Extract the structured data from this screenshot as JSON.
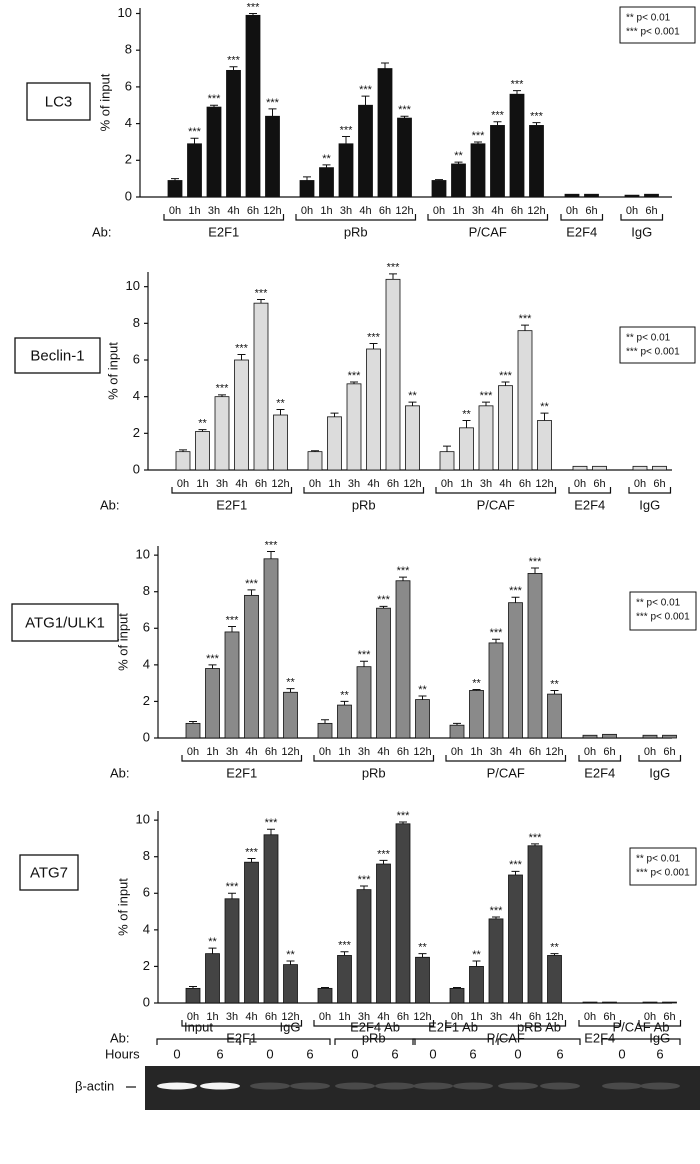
{
  "chart_data": [
    {
      "type": "bar",
      "label": "LC3",
      "ylabel": "% of input",
      "ylim": [
        0,
        10.3
      ],
      "yticks": [
        0,
        2,
        4,
        6,
        8,
        10
      ],
      "color": "#111111",
      "ab_label": "Ab:",
      "legend": [
        "** p< 0.01",
        "*** p< 0.001"
      ],
      "groups": [
        {
          "name": "E2F1",
          "categories": [
            "0h",
            "1h",
            "3h",
            "4h",
            "6h",
            "12h"
          ],
          "values": [
            0.9,
            2.9,
            4.9,
            6.9,
            9.9,
            4.4
          ],
          "errors": [
            0.1,
            0.3,
            0.1,
            0.2,
            0.1,
            0.4
          ],
          "annotations": [
            null,
            "***",
            "***",
            "***",
            "***",
            "***"
          ]
        },
        {
          "name": "pRb",
          "categories": [
            "0h",
            "1h",
            "3h",
            "4h",
            "6h",
            "12h"
          ],
          "values": [
            0.9,
            1.6,
            2.9,
            5.0,
            7.0,
            4.3
          ],
          "errors": [
            0.2,
            0.15,
            0.4,
            0.5,
            0.3,
            0.1
          ],
          "annotations": [
            null,
            "**",
            "***",
            "***",
            null,
            "***"
          ]
        },
        {
          "name": "P/CAF",
          "categories": [
            "0h",
            "1h",
            "3h",
            "4h",
            "6h",
            "12h"
          ],
          "values": [
            0.9,
            1.8,
            2.9,
            3.9,
            5.6,
            3.9
          ],
          "errors": [
            0.05,
            0.1,
            0.1,
            0.2,
            0.2,
            0.15
          ],
          "annotations": [
            null,
            "**",
            "***",
            "***",
            "***",
            "***"
          ]
        },
        {
          "name": "E2F4",
          "categories": [
            "0h",
            "6h"
          ],
          "values": [
            0.15,
            0.15
          ],
          "errors": [
            0,
            0
          ],
          "annotations": [
            null,
            null
          ]
        },
        {
          "name": "IgG",
          "categories": [
            "0h",
            "6h"
          ],
          "values": [
            0.1,
            0.15
          ],
          "errors": [
            0,
            0
          ],
          "annotations": [
            null,
            null
          ]
        }
      ]
    },
    {
      "type": "bar",
      "label": "Beclin-1",
      "ylabel": "% of input",
      "ylim": [
        0,
        10.8
      ],
      "yticks": [
        0,
        2,
        4,
        6,
        8,
        10
      ],
      "color": "#dcdcdc",
      "ab_label": "Ab:",
      "legend": [
        "** p< 0.01",
        "*** p< 0.001"
      ],
      "groups": [
        {
          "name": "E2F1",
          "categories": [
            "0h",
            "1h",
            "3h",
            "4h",
            "6h",
            "12h"
          ],
          "values": [
            1.0,
            2.1,
            4.0,
            6.0,
            9.1,
            3.0
          ],
          "errors": [
            0.1,
            0.1,
            0.1,
            0.3,
            0.2,
            0.3
          ],
          "annotations": [
            null,
            "**",
            "***",
            "***",
            "***",
            "**"
          ]
        },
        {
          "name": "pRb",
          "categories": [
            "0h",
            "1h",
            "3h",
            "4h",
            "6h",
            "12h"
          ],
          "values": [
            1.0,
            2.9,
            4.7,
            6.6,
            10.4,
            3.5
          ],
          "errors": [
            0.05,
            0.2,
            0.1,
            0.3,
            0.3,
            0.2
          ],
          "annotations": [
            null,
            null,
            "***",
            "***",
            "***",
            "**"
          ]
        },
        {
          "name": "P/CAF",
          "categories": [
            "0h",
            "1h",
            "3h",
            "4h",
            "6h",
            "12h"
          ],
          "values": [
            1.0,
            2.3,
            3.5,
            4.6,
            7.6,
            2.7
          ],
          "errors": [
            0.3,
            0.4,
            0.2,
            0.2,
            0.3,
            0.4
          ],
          "annotations": [
            null,
            "**",
            "***",
            "***",
            "***",
            "**"
          ]
        },
        {
          "name": "E2F4",
          "categories": [
            "0h",
            "6h"
          ],
          "values": [
            0.2,
            0.2
          ],
          "errors": [
            0,
            0
          ],
          "annotations": [
            null,
            null
          ]
        },
        {
          "name": "IgG",
          "categories": [
            "0h",
            "6h"
          ],
          "values": [
            0.2,
            0.2
          ],
          "errors": [
            0,
            0
          ],
          "annotations": [
            null,
            null
          ]
        }
      ]
    },
    {
      "type": "bar",
      "label": "ATG1/ULK1",
      "ylabel": "% of input",
      "ylim": [
        0,
        10.5
      ],
      "yticks": [
        0,
        2,
        4,
        6,
        8,
        10
      ],
      "color": "#8a8a8a",
      "ab_label": "Ab:",
      "legend": [
        "** p< 0.01",
        "*** p< 0.001"
      ],
      "groups": [
        {
          "name": "E2F1",
          "categories": [
            "0h",
            "1h",
            "3h",
            "4h",
            "6h",
            "12h"
          ],
          "values": [
            0.8,
            3.8,
            5.8,
            7.8,
            9.8,
            2.5
          ],
          "errors": [
            0.1,
            0.2,
            0.3,
            0.3,
            0.4,
            0.2
          ],
          "annotations": [
            null,
            "***",
            "***",
            "***",
            "***",
            "**"
          ]
        },
        {
          "name": "pRb",
          "categories": [
            "0h",
            "1h",
            "3h",
            "4h",
            "6h",
            "12h"
          ],
          "values": [
            0.8,
            1.8,
            3.9,
            7.1,
            8.6,
            2.1
          ],
          "errors": [
            0.2,
            0.2,
            0.3,
            0.1,
            0.2,
            0.2
          ],
          "annotations": [
            null,
            "**",
            "***",
            "***",
            "***",
            "**"
          ]
        },
        {
          "name": "P/CAF",
          "categories": [
            "0h",
            "1h",
            "3h",
            "4h",
            "6h",
            "12h"
          ],
          "values": [
            0.7,
            2.6,
            5.2,
            7.4,
            9.0,
            2.4
          ],
          "errors": [
            0.1,
            0.05,
            0.2,
            0.3,
            0.3,
            0.2
          ],
          "annotations": [
            null,
            "**",
            "***",
            "***",
            "***",
            "**"
          ]
        },
        {
          "name": "E2F4",
          "categories": [
            "0h",
            "6h"
          ],
          "values": [
            0.15,
            0.2
          ],
          "errors": [
            0,
            0
          ],
          "annotations": [
            null,
            null
          ]
        },
        {
          "name": "IgG",
          "categories": [
            "0h",
            "6h"
          ],
          "values": [
            0.15,
            0.15
          ],
          "errors": [
            0,
            0
          ],
          "annotations": [
            null,
            null
          ]
        }
      ]
    },
    {
      "type": "bar",
      "label": "ATG7",
      "ylabel": "% of input",
      "ylim": [
        0,
        10.5
      ],
      "yticks": [
        0,
        2,
        4,
        6,
        8,
        10
      ],
      "color": "#444444",
      "ab_label": "Ab:",
      "legend": [
        "** p< 0.01",
        "*** p< 0.001"
      ],
      "groups": [
        {
          "name": "E2F1",
          "categories": [
            "0h",
            "1h",
            "3h",
            "4h",
            "6h",
            "12h"
          ],
          "values": [
            0.8,
            2.7,
            5.7,
            7.7,
            9.2,
            2.1
          ],
          "errors": [
            0.1,
            0.3,
            0.3,
            0.2,
            0.3,
            0.2
          ],
          "annotations": [
            null,
            "**",
            "***",
            "***",
            "***",
            "**"
          ]
        },
        {
          "name": "pRb",
          "categories": [
            "0h",
            "1h",
            "3h",
            "4h",
            "6h",
            "12h"
          ],
          "values": [
            0.8,
            2.6,
            6.2,
            7.6,
            9.8,
            2.5
          ],
          "errors": [
            0.05,
            0.2,
            0.2,
            0.2,
            0.1,
            0.2
          ],
          "annotations": [
            null,
            "***",
            "***",
            "***",
            "***",
            "**"
          ]
        },
        {
          "name": "P/CAF",
          "categories": [
            "0h",
            "1h",
            "3h",
            "4h",
            "6h",
            "12h"
          ],
          "values": [
            0.8,
            2.0,
            4.6,
            7.0,
            8.6,
            2.6
          ],
          "errors": [
            0.05,
            0.3,
            0.1,
            0.2,
            0.1,
            0.1
          ],
          "annotations": [
            null,
            "**",
            "***",
            "***",
            "***",
            "**"
          ]
        },
        {
          "name": "E2F4",
          "categories": [
            "0h",
            "6h"
          ],
          "values": [
            0.05,
            0.05
          ],
          "errors": [
            0,
            0
          ],
          "annotations": [
            null,
            null
          ]
        },
        {
          "name": "IgG",
          "categories": [
            "0h",
            "6h"
          ],
          "values": [
            0.05,
            0.05
          ],
          "errors": [
            0,
            0
          ],
          "annotations": [
            null,
            null
          ]
        }
      ]
    }
  ],
  "gel": {
    "hours_label": "Hours",
    "row_label": "β-actin",
    "groups": [
      {
        "name": "Input",
        "hours": [
          0,
          6
        ]
      },
      {
        "name": "IgG",
        "hours": [
          0,
          6
        ]
      },
      {
        "name": "E2F4 Ab",
        "hours": [
          0,
          6
        ]
      },
      {
        "name": "E2F1 Ab",
        "hours": [
          0,
          6
        ]
      },
      {
        "name": "pRB Ab",
        "hours": [
          0,
          6
        ]
      },
      {
        "name": "P/CAF Ab",
        "hours": [
          0,
          6
        ]
      }
    ]
  }
}
